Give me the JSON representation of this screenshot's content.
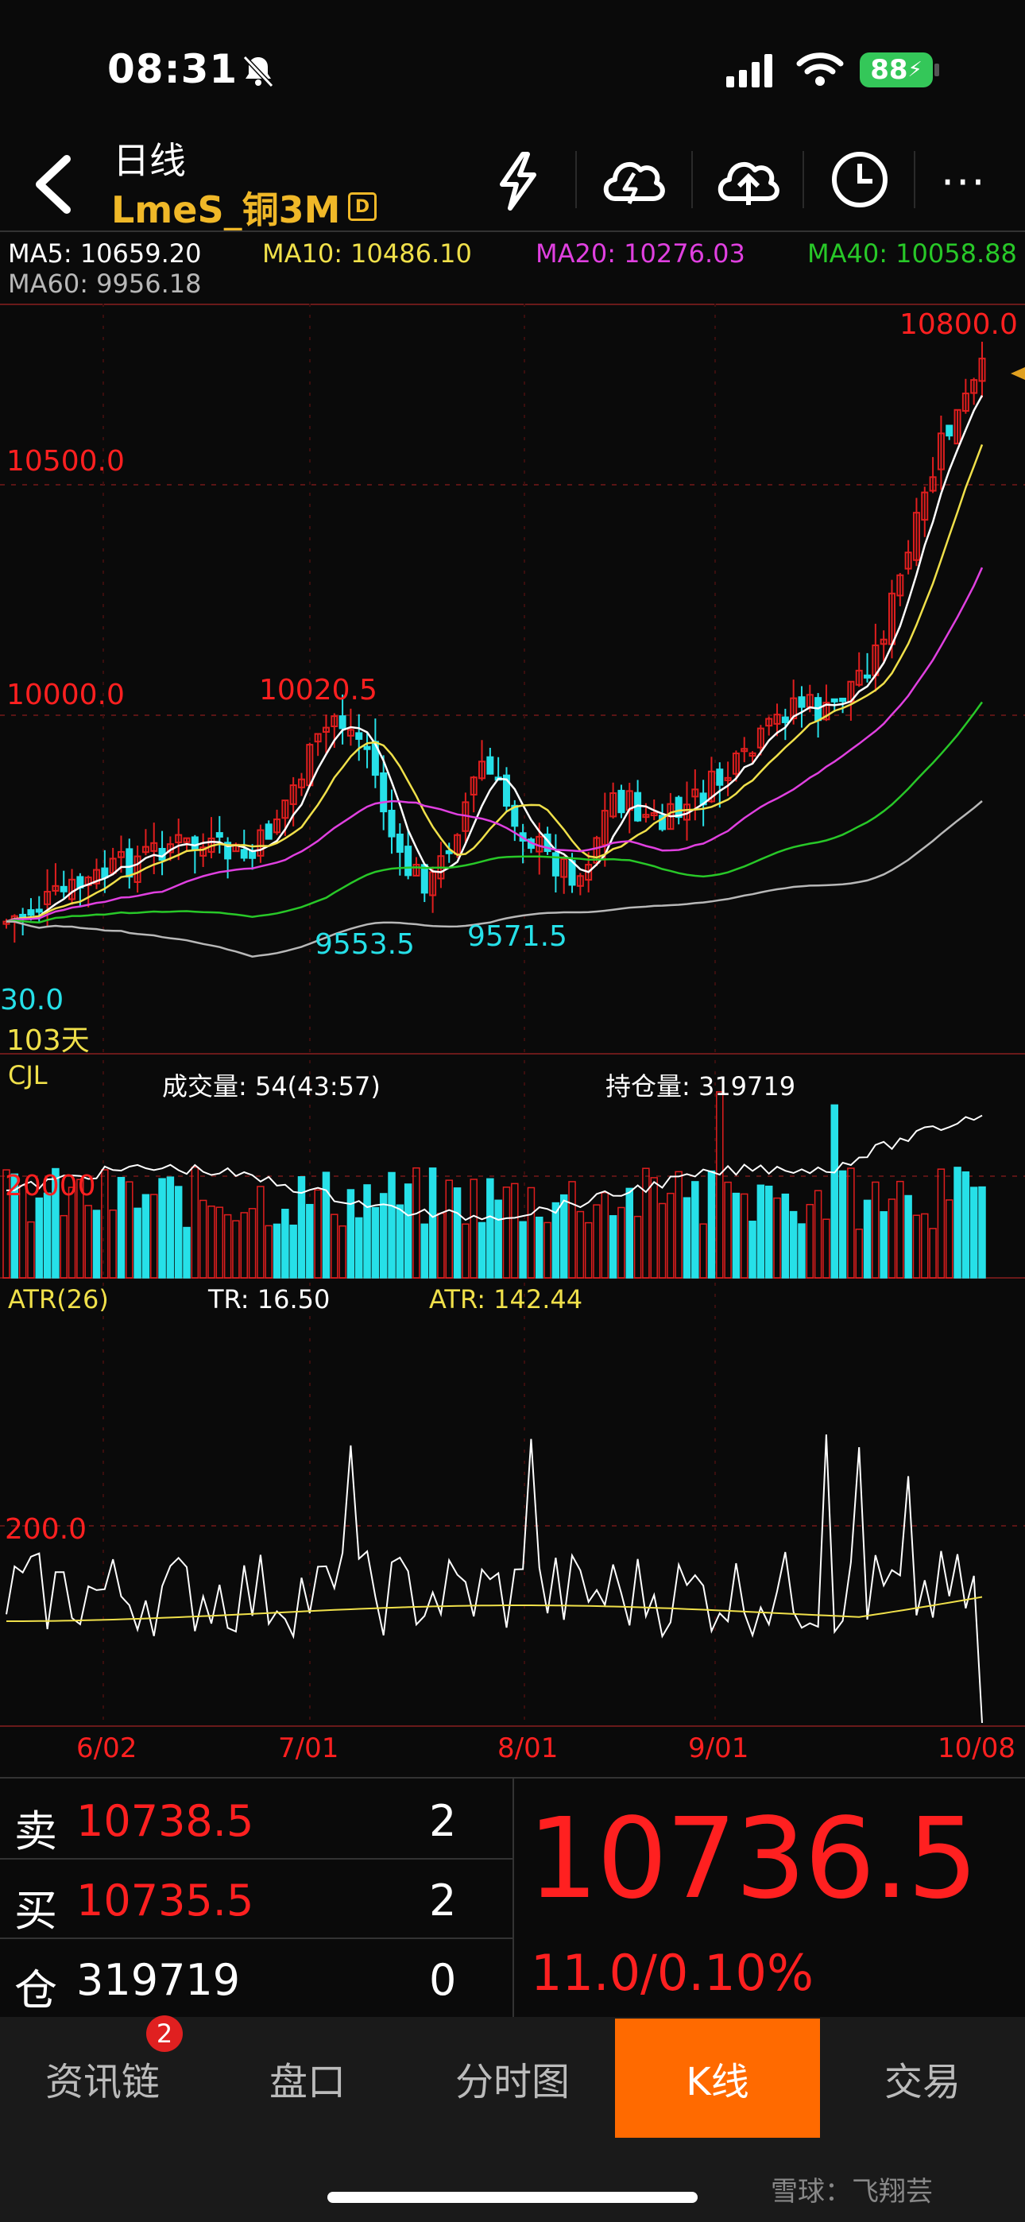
{
  "status_bar": {
    "time": "08:31",
    "battery": "88"
  },
  "header": {
    "title": "日线",
    "symbol": "LmeS_铜3M",
    "badge": "D"
  },
  "ma": {
    "ma5": "MA5: 10659.20",
    "ma10": "MA10: 10486.10",
    "ma20": "MA20: 10276.03",
    "ma40": "MA40: 10058.88",
    "ma60": "MA60: 9956.18"
  },
  "colors": {
    "up": "#e01e1e",
    "down": "#26e0e8",
    "ma5": "#ffffff",
    "ma10": "#f0e04a",
    "ma20": "#e040e0",
    "ma40": "#28c828",
    "ma60": "#b8b8b8",
    "accent": "#ff6a00"
  },
  "price_chart": {
    "high_label": "10800.0",
    "level_10500": "10500.0",
    "level_10000": "10000.0",
    "peak_label": "10020.5",
    "low1_label": "9553.5",
    "low2_label": "9571.5",
    "left_low_label": "30.0",
    "days_label": "103天"
  },
  "volume_panel": {
    "name": "CJL",
    "volume": "成交量: 54(43:57)",
    "open_interest": "持仓量: 319719",
    "level": "20000"
  },
  "atr_panel": {
    "name": "ATR(26)",
    "tr": "TR: 16.50",
    "atr": "ATR: 142.44",
    "level": "200.0"
  },
  "x_axis": [
    "6/02",
    "7/01",
    "8/01",
    "9/01",
    "10/08"
  ],
  "quote": {
    "sell_label": "卖",
    "sell_price": "10738.5",
    "sell_qty": "2",
    "buy_label": "买",
    "buy_price": "10735.5",
    "buy_qty": "2",
    "oi_label": "仓",
    "oi_value": "319719",
    "oi_change": "0",
    "last_price": "10736.5",
    "change": "11.0/0.10%"
  },
  "tabs": {
    "news": "资讯链",
    "news_badge": "2",
    "orderbook": "盘口",
    "timeshare": "分时图",
    "kline": "K线",
    "trade": "交易"
  },
  "footer": {
    "watermark": "雪球：飞翔芸"
  }
}
